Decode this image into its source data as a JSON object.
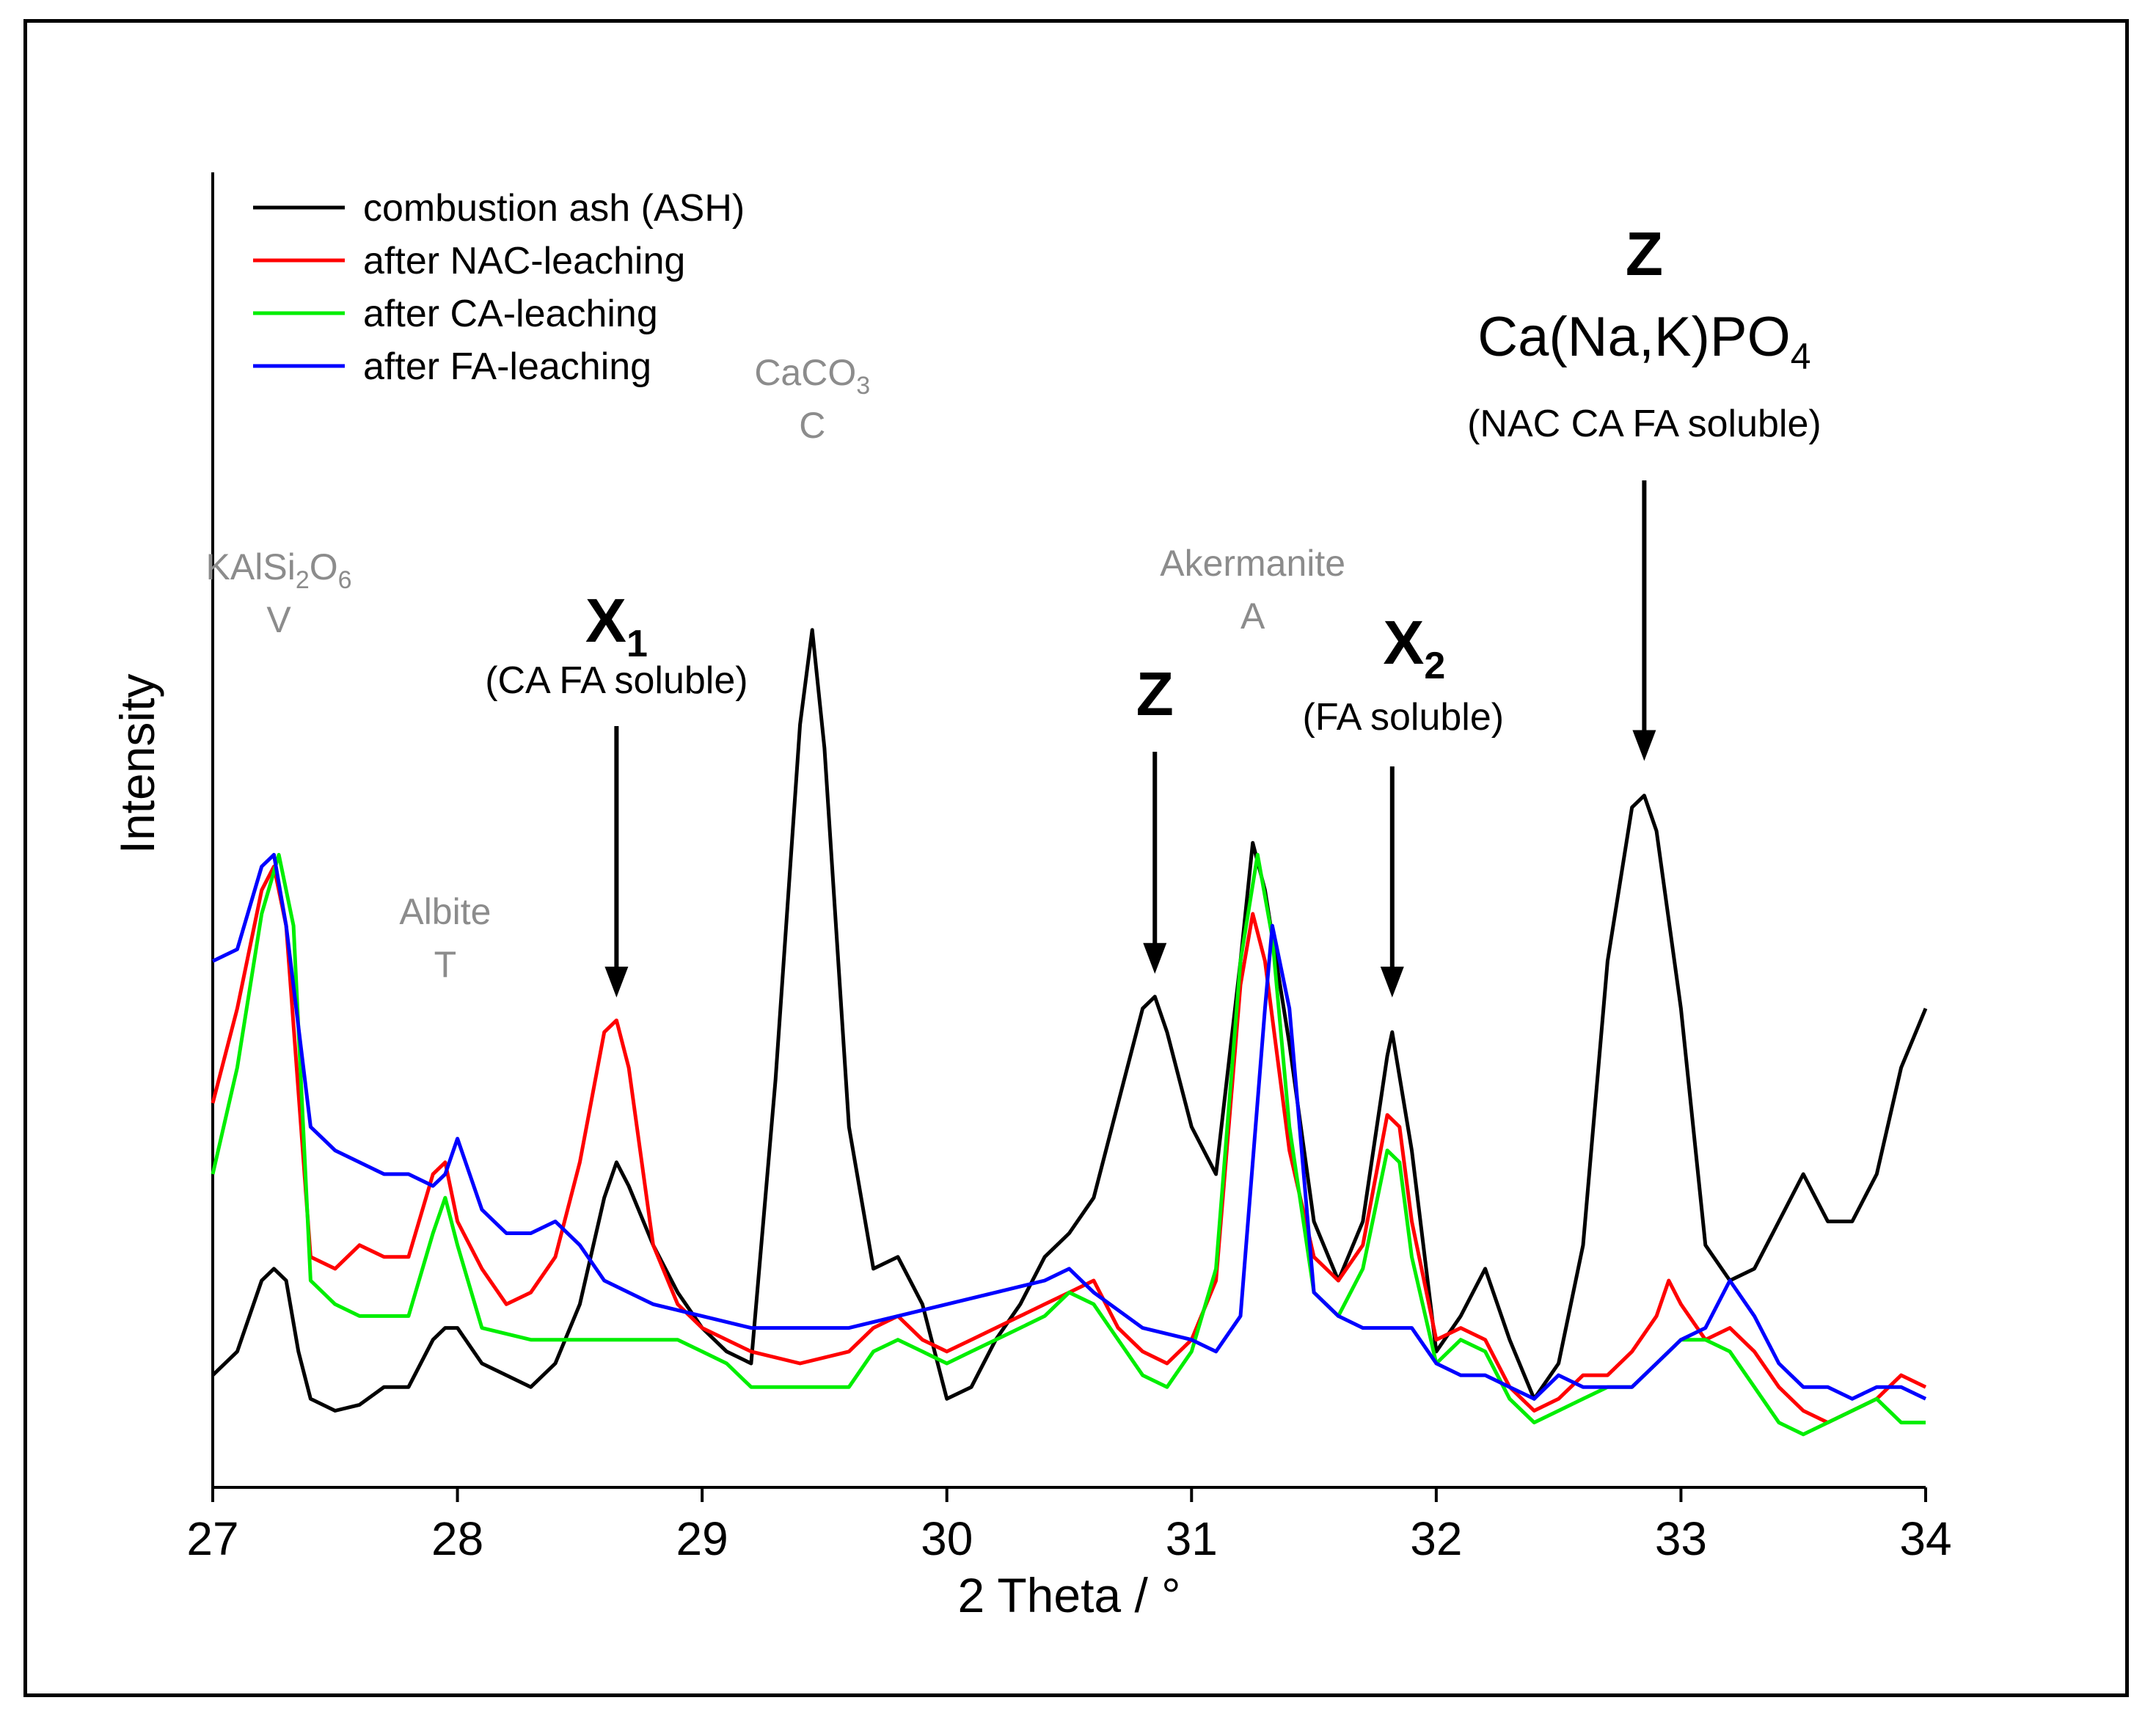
{
  "chart_data": {
    "type": "line",
    "title": "",
    "xlabel": "2 Theta / °",
    "ylabel": "Intensity",
    "xlim": [
      27,
      34
    ],
    "ylim": [
      0,
      100
    ],
    "xticks": [
      27,
      28,
      29,
      30,
      31,
      32,
      33,
      34
    ],
    "ytick_labels": false,
    "grid": false,
    "legend_position": "top-left",
    "series": [
      {
        "name": "combustion ash (ASH)",
        "color": "#000000",
        "points": [
          [
            27,
            7
          ],
          [
            27.1,
            9
          ],
          [
            27.2,
            15
          ],
          [
            27.25,
            16
          ],
          [
            27.3,
            15
          ],
          [
            27.35,
            9
          ],
          [
            27.4,
            5
          ],
          [
            27.5,
            4
          ],
          [
            27.6,
            4.5
          ],
          [
            27.7,
            6
          ],
          [
            27.8,
            6
          ],
          [
            27.9,
            10
          ],
          [
            27.95,
            11
          ],
          [
            28.0,
            11
          ],
          [
            28.1,
            8
          ],
          [
            28.2,
            7
          ],
          [
            28.3,
            6
          ],
          [
            28.4,
            8
          ],
          [
            28.5,
            13
          ],
          [
            28.6,
            22
          ],
          [
            28.65,
            25
          ],
          [
            28.7,
            23
          ],
          [
            28.8,
            18
          ],
          [
            28.9,
            14
          ],
          [
            29.0,
            11
          ],
          [
            29.1,
            9
          ],
          [
            29.2,
            8
          ],
          [
            29.3,
            32
          ],
          [
            29.4,
            62
          ],
          [
            29.45,
            70
          ],
          [
            29.5,
            60
          ],
          [
            29.6,
            28
          ],
          [
            29.7,
            16
          ],
          [
            29.8,
            17
          ],
          [
            29.9,
            13
          ],
          [
            30.0,
            5
          ],
          [
            30.1,
            6
          ],
          [
            30.2,
            10
          ],
          [
            30.3,
            13
          ],
          [
            30.4,
            17
          ],
          [
            30.5,
            19
          ],
          [
            30.6,
            22
          ],
          [
            30.7,
            30
          ],
          [
            30.8,
            38
          ],
          [
            30.85,
            39
          ],
          [
            30.9,
            36
          ],
          [
            31.0,
            28
          ],
          [
            31.1,
            24
          ],
          [
            31.2,
            42
          ],
          [
            31.25,
            52
          ],
          [
            31.3,
            48
          ],
          [
            31.4,
            35
          ],
          [
            31.5,
            20
          ],
          [
            31.6,
            15
          ],
          [
            31.7,
            20
          ],
          [
            31.8,
            34
          ],
          [
            31.82,
            36
          ],
          [
            31.9,
            26
          ],
          [
            32.0,
            9
          ],
          [
            32.1,
            12
          ],
          [
            32.2,
            16
          ],
          [
            32.3,
            10
          ],
          [
            32.4,
            5
          ],
          [
            32.5,
            8
          ],
          [
            32.6,
            18
          ],
          [
            32.7,
            42
          ],
          [
            32.8,
            55
          ],
          [
            32.85,
            56
          ],
          [
            32.9,
            53
          ],
          [
            33.0,
            38
          ],
          [
            33.1,
            18
          ],
          [
            33.2,
            15
          ],
          [
            33.3,
            16
          ],
          [
            33.4,
            20
          ],
          [
            33.5,
            24
          ],
          [
            33.6,
            20
          ],
          [
            33.7,
            20
          ],
          [
            33.8,
            24
          ],
          [
            33.9,
            33
          ],
          [
            34.0,
            38
          ]
        ]
      },
      {
        "name": "after NAC-leaching",
        "color": "#ff0000",
        "points": [
          [
            27,
            30
          ],
          [
            27.1,
            38
          ],
          [
            27.2,
            48
          ],
          [
            27.25,
            50
          ],
          [
            27.3,
            45
          ],
          [
            27.4,
            17
          ],
          [
            27.5,
            16
          ],
          [
            27.6,
            18
          ],
          [
            27.7,
            17
          ],
          [
            27.8,
            17
          ],
          [
            27.9,
            24
          ],
          [
            27.95,
            25
          ],
          [
            28.0,
            20
          ],
          [
            28.1,
            16
          ],
          [
            28.2,
            13
          ],
          [
            28.3,
            14
          ],
          [
            28.4,
            17
          ],
          [
            28.5,
            25
          ],
          [
            28.6,
            36
          ],
          [
            28.65,
            37
          ],
          [
            28.7,
            33
          ],
          [
            28.8,
            18
          ],
          [
            28.9,
            13
          ],
          [
            29.0,
            11
          ],
          [
            29.2,
            9
          ],
          [
            29.4,
            8
          ],
          [
            29.6,
            9
          ],
          [
            29.7,
            11
          ],
          [
            29.8,
            12
          ],
          [
            29.9,
            10
          ],
          [
            30.0,
            9
          ],
          [
            30.1,
            10
          ],
          [
            30.2,
            11
          ],
          [
            30.3,
            12
          ],
          [
            30.4,
            13
          ],
          [
            30.5,
            14
          ],
          [
            30.6,
            15
          ],
          [
            30.7,
            11
          ],
          [
            30.8,
            9
          ],
          [
            30.9,
            8
          ],
          [
            31.0,
            10
          ],
          [
            31.1,
            15
          ],
          [
            31.2,
            40
          ],
          [
            31.25,
            46
          ],
          [
            31.3,
            42
          ],
          [
            31.4,
            26
          ],
          [
            31.5,
            17
          ],
          [
            31.6,
            15
          ],
          [
            31.7,
            18
          ],
          [
            31.8,
            29
          ],
          [
            31.85,
            28
          ],
          [
            31.9,
            20
          ],
          [
            32.0,
            10
          ],
          [
            32.1,
            11
          ],
          [
            32.2,
            10
          ],
          [
            32.3,
            6
          ],
          [
            32.4,
            4
          ],
          [
            32.5,
            5
          ],
          [
            32.6,
            7
          ],
          [
            32.7,
            7
          ],
          [
            32.8,
            9
          ],
          [
            32.9,
            12
          ],
          [
            32.95,
            15
          ],
          [
            33.0,
            13
          ],
          [
            33.1,
            10
          ],
          [
            33.2,
            11
          ],
          [
            33.3,
            9
          ],
          [
            33.4,
            6
          ],
          [
            33.5,
            4
          ],
          [
            33.6,
            3
          ],
          [
            33.7,
            4
          ],
          [
            33.8,
            5
          ],
          [
            33.9,
            7
          ],
          [
            34.0,
            6
          ]
        ]
      },
      {
        "name": "after CA-leaching",
        "color": "#00ee00",
        "points": [
          [
            27,
            24
          ],
          [
            27.1,
            33
          ],
          [
            27.2,
            46
          ],
          [
            27.27,
            51
          ],
          [
            27.33,
            45
          ],
          [
            27.4,
            15
          ],
          [
            27.5,
            13
          ],
          [
            27.6,
            12
          ],
          [
            27.7,
            12
          ],
          [
            27.8,
            12
          ],
          [
            27.9,
            19
          ],
          [
            27.95,
            22
          ],
          [
            28.0,
            18
          ],
          [
            28.1,
            11
          ],
          [
            28.3,
            10
          ],
          [
            28.5,
            10
          ],
          [
            28.7,
            10
          ],
          [
            28.9,
            10
          ],
          [
            29.0,
            9
          ],
          [
            29.1,
            8
          ],
          [
            29.2,
            6
          ],
          [
            29.4,
            6
          ],
          [
            29.6,
            6
          ],
          [
            29.7,
            9
          ],
          [
            29.8,
            10
          ],
          [
            29.9,
            9
          ],
          [
            30.0,
            8
          ],
          [
            30.1,
            9
          ],
          [
            30.2,
            10
          ],
          [
            30.3,
            11
          ],
          [
            30.4,
            12
          ],
          [
            30.5,
            14
          ],
          [
            30.6,
            13
          ],
          [
            30.7,
            10
          ],
          [
            30.8,
            7
          ],
          [
            30.9,
            6
          ],
          [
            31.0,
            9
          ],
          [
            31.1,
            16
          ],
          [
            31.2,
            42
          ],
          [
            31.27,
            51
          ],
          [
            31.33,
            44
          ],
          [
            31.4,
            28
          ],
          [
            31.5,
            14
          ],
          [
            31.6,
            12
          ],
          [
            31.7,
            16
          ],
          [
            31.8,
            26
          ],
          [
            31.85,
            25
          ],
          [
            31.9,
            17
          ],
          [
            32.0,
            8
          ],
          [
            32.1,
            10
          ],
          [
            32.2,
            9
          ],
          [
            32.3,
            5
          ],
          [
            32.4,
            3
          ],
          [
            32.5,
            4
          ],
          [
            32.6,
            5
          ],
          [
            32.7,
            6
          ],
          [
            32.8,
            6
          ],
          [
            32.9,
            8
          ],
          [
            33.0,
            10
          ],
          [
            33.1,
            10
          ],
          [
            33.2,
            9
          ],
          [
            33.3,
            6
          ],
          [
            33.4,
            3
          ],
          [
            33.5,
            2
          ],
          [
            33.6,
            3
          ],
          [
            33.7,
            4
          ],
          [
            33.8,
            5
          ],
          [
            33.9,
            3
          ],
          [
            34.0,
            3
          ]
        ]
      },
      {
        "name": "after FA-leaching",
        "color": "#0000ff",
        "points": [
          [
            27,
            42
          ],
          [
            27.1,
            43
          ],
          [
            27.2,
            50
          ],
          [
            27.25,
            51
          ],
          [
            27.3,
            45
          ],
          [
            27.4,
            28
          ],
          [
            27.5,
            26
          ],
          [
            27.6,
            25
          ],
          [
            27.7,
            24
          ],
          [
            27.8,
            24
          ],
          [
            27.9,
            23
          ],
          [
            27.95,
            24
          ],
          [
            28.0,
            27
          ],
          [
            28.1,
            21
          ],
          [
            28.2,
            19
          ],
          [
            28.3,
            19
          ],
          [
            28.4,
            20
          ],
          [
            28.5,
            18
          ],
          [
            28.6,
            15
          ],
          [
            28.7,
            14
          ],
          [
            28.8,
            13
          ],
          [
            29.0,
            12
          ],
          [
            29.2,
            11
          ],
          [
            29.4,
            11
          ],
          [
            29.6,
            11
          ],
          [
            29.8,
            12
          ],
          [
            30.0,
            13
          ],
          [
            30.2,
            14
          ],
          [
            30.4,
            15
          ],
          [
            30.5,
            16
          ],
          [
            30.6,
            14
          ],
          [
            30.8,
            11
          ],
          [
            31.0,
            10
          ],
          [
            31.1,
            9
          ],
          [
            31.2,
            12
          ],
          [
            31.3,
            38
          ],
          [
            31.33,
            45
          ],
          [
            31.4,
            38
          ],
          [
            31.5,
            14
          ],
          [
            31.6,
            12
          ],
          [
            31.7,
            11
          ],
          [
            31.8,
            11
          ],
          [
            31.9,
            11
          ],
          [
            32.0,
            8
          ],
          [
            32.1,
            7
          ],
          [
            32.2,
            7
          ],
          [
            32.3,
            6
          ],
          [
            32.4,
            5
          ],
          [
            32.5,
            7
          ],
          [
            32.6,
            6
          ],
          [
            32.7,
            6
          ],
          [
            32.8,
            6
          ],
          [
            32.9,
            8
          ],
          [
            33.0,
            10
          ],
          [
            33.1,
            11
          ],
          [
            33.2,
            15
          ],
          [
            33.3,
            12
          ],
          [
            33.4,
            8
          ],
          [
            33.5,
            6
          ],
          [
            33.6,
            6
          ],
          [
            33.7,
            5
          ],
          [
            33.8,
            6
          ],
          [
            33.9,
            6
          ],
          [
            34.0,
            5
          ]
        ]
      }
    ],
    "legend": [
      "combustion ash (ASH)",
      "after NAC-leaching",
      "after CA-leaching",
      "after FA-leaching"
    ],
    "phase_labels": [
      {
        "formula": "KAlSi",
        "sub1": "2",
        "mid": "O",
        "sub2": "6",
        "letter": "V",
        "x": 27.27
      },
      {
        "name": "Albite",
        "letter": "T",
        "x": 27.95
      },
      {
        "formula": "CaCO",
        "sub1": "3",
        "letter": "C",
        "x": 29.45
      },
      {
        "name": "Akermanite",
        "letter": "A",
        "x": 31.25
      }
    ],
    "peak_annotations": [
      {
        "symbol": "X",
        "sub": "1",
        "note": "(CA FA soluble)",
        "x": 28.65,
        "arrow_tip_y": 38
      },
      {
        "symbol": "Z",
        "x": 30.85,
        "arrow_tip_y": 40
      },
      {
        "symbol": "X",
        "sub": "2",
        "note": "(FA soluble)",
        "x": 31.82,
        "arrow_tip_y": 38
      },
      {
        "symbol": "Z",
        "formula": "Ca(Na,K)PO",
        "formula_sub": "4",
        "note": "(NAC CA FA soluble)",
        "x": 32.85,
        "arrow_tip_y": 58
      }
    ]
  }
}
